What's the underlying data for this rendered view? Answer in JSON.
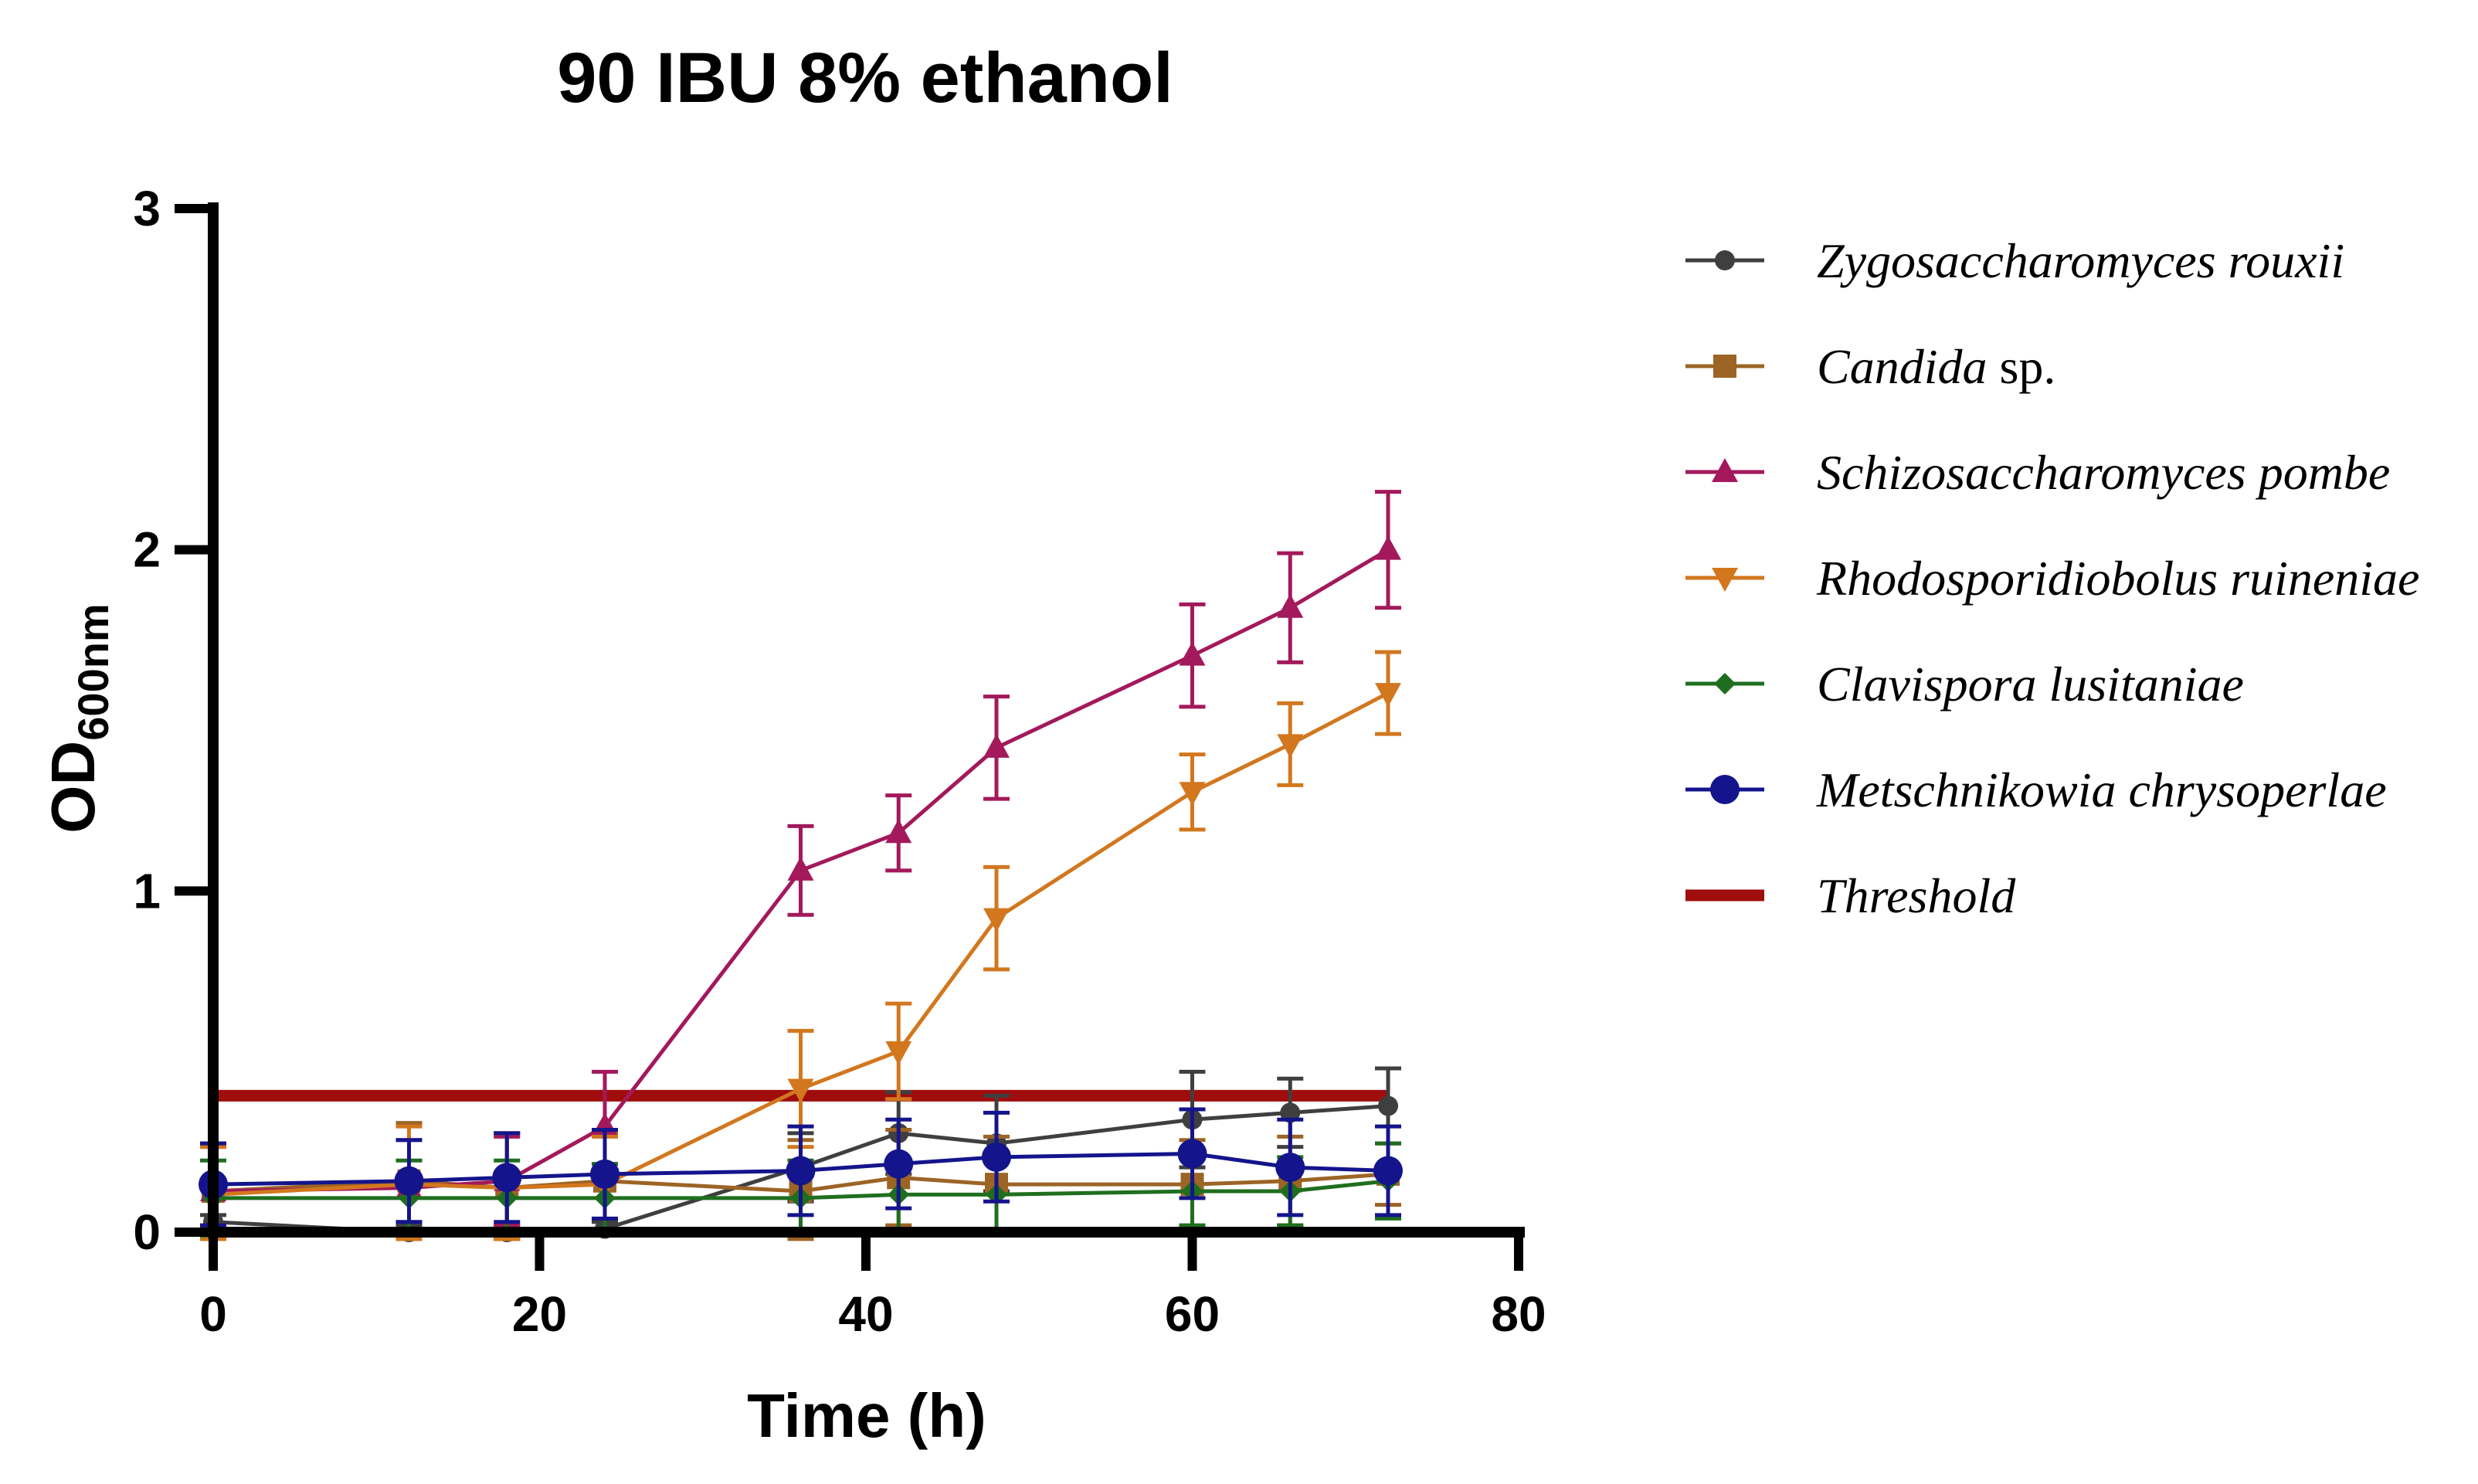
{
  "chart_data": {
    "type": "line",
    "title": "90 IBU 8% ethanol",
    "xlabel": "Time (h)",
    "ylabel": "OD",
    "ylabel_subscript": "600nm",
    "xlim": [
      0,
      80
    ],
    "ylim": [
      0,
      3
    ],
    "xticks": [
      "0",
      "20",
      "40",
      "60",
      "80"
    ],
    "yticks": [
      "0",
      "1",
      "2",
      "3"
    ],
    "grid": false,
    "legend_position": "right",
    "x": [
      0,
      12,
      18,
      24,
      36,
      42,
      48,
      60,
      66,
      72
    ],
    "series": [
      {
        "name": "Zygosaccharomyces rouxii",
        "name_italic": "Zygosaccharomyces rouxii",
        "name_plain": "",
        "color": "#3f3f3f",
        "marker": "circle",
        "values": [
          0.03,
          0.0,
          0.0,
          0.01,
          0.19,
          0.29,
          0.26,
          0.33,
          0.35,
          0.37
        ],
        "errors": [
          0.02,
          0.02,
          0.02,
          0.02,
          0.1,
          0.12,
          0.14,
          0.14,
          0.1,
          0.11
        ]
      },
      {
        "name": "Candida sp.",
        "name_italic": "Candida",
        "name_plain": " sp.",
        "color": "#9c6425",
        "marker": "square",
        "values": [
          0.12,
          0.15,
          0.13,
          0.15,
          0.12,
          0.16,
          0.14,
          0.14,
          0.15,
          0.17
        ],
        "errors": [
          0.14,
          0.17,
          0.16,
          0.14,
          0.15,
          0.14,
          0.14,
          0.13,
          0.13,
          0.09
        ]
      },
      {
        "name": "Schizosaccharomyces pombe",
        "name_italic": "Schizosaccharomyces pombe",
        "name_plain": "",
        "color": "#a3195b",
        "marker": "triangle-up",
        "values": [
          0.12,
          0.13,
          0.15,
          0.31,
          1.06,
          1.17,
          1.42,
          1.69,
          1.83,
          2.0
        ],
        "errors": [
          0.13,
          0.14,
          0.13,
          0.16,
          0.13,
          0.11,
          0.15,
          0.15,
          0.16,
          0.17
        ]
      },
      {
        "name": "Rhodosporidiobolus ruineniae",
        "name_italic": "Rhodosporidiobolus ruineniae",
        "name_plain": "",
        "color": "#d2771e",
        "marker": "triangle-down",
        "values": [
          0.11,
          0.14,
          0.13,
          0.14,
          0.42,
          0.53,
          0.92,
          1.29,
          1.43,
          1.58
        ],
        "errors": [
          0.14,
          0.17,
          0.16,
          0.14,
          0.17,
          0.14,
          0.15,
          0.11,
          0.12,
          0.12
        ]
      },
      {
        "name": "Clavispora lusitaniae",
        "name_italic": "Clavispora lusitaniae",
        "name_plain": "",
        "color": "#1f6e1f",
        "marker": "diamond",
        "values": [
          0.1,
          0.1,
          0.1,
          0.1,
          0.1,
          0.11,
          0.11,
          0.12,
          0.12,
          0.15
        ],
        "errors": [
          0.11,
          0.11,
          0.11,
          0.1,
          0.11,
          0.1,
          0.11,
          0.1,
          0.1,
          0.11
        ]
      },
      {
        "name": "Metschnikowia chrysoperlae",
        "name_italic": "Metschnikowia chrysoperlae",
        "name_plain": "",
        "color": "#14148c",
        "marker": "big-circle",
        "values": [
          0.14,
          0.15,
          0.16,
          0.17,
          0.18,
          0.2,
          0.22,
          0.23,
          0.19,
          0.18
        ],
        "errors": [
          0.12,
          0.12,
          0.13,
          0.13,
          0.13,
          0.13,
          0.13,
          0.13,
          0.14,
          0.13
        ]
      }
    ],
    "threshold": {
      "name": "Threshold",
      "value": 0.4,
      "x_range": [
        0,
        72
      ],
      "color": "#a00d0d"
    }
  }
}
